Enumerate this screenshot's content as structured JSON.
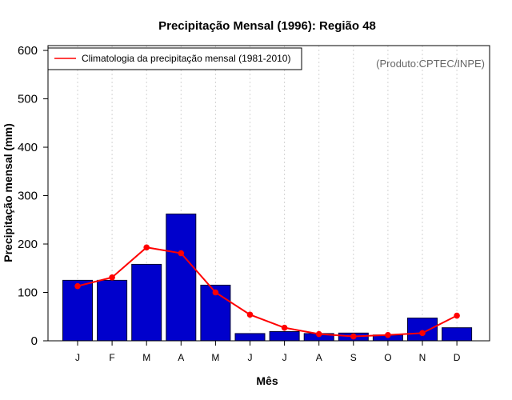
{
  "colors": {
    "bar_fill": "#0000cc",
    "bar_stroke": "#000033",
    "climatology_line": "#ff0000",
    "grid": "#d3d3d3",
    "credit_text": "#666666"
  },
  "chart_data": {
    "type": "bar",
    "title": "Precipitação Mensal (1996): Região 48",
    "xlabel": "Mês",
    "ylabel": "Precipitação mensal (mm)",
    "ylim": [
      0,
      610
    ],
    "yticks": [
      0,
      100,
      200,
      300,
      400,
      500,
      600
    ],
    "grid": "vertical dotted",
    "categories": [
      "J",
      "F",
      "M",
      "A",
      "M",
      "J",
      "J",
      "A",
      "S",
      "O",
      "N",
      "D"
    ],
    "series": [
      {
        "name": "Precipitação mensal (1996)",
        "kind": "bar",
        "values": [
          125,
          125,
          158,
          262,
          115,
          15,
          19,
          15,
          16,
          12,
          47,
          27
        ]
      },
      {
        "name": "Climatologia da precipitação mensal (1981-2010)",
        "kind": "line",
        "values": [
          113,
          131,
          193,
          181,
          100,
          54,
          27,
          14,
          9,
          12,
          16,
          52
        ]
      }
    ],
    "legend": {
      "position": "top-left",
      "label": "Climatologia da precipitação mensal (1981-2010)"
    },
    "annotation": "(Produto:CPTEC/INPE)"
  }
}
